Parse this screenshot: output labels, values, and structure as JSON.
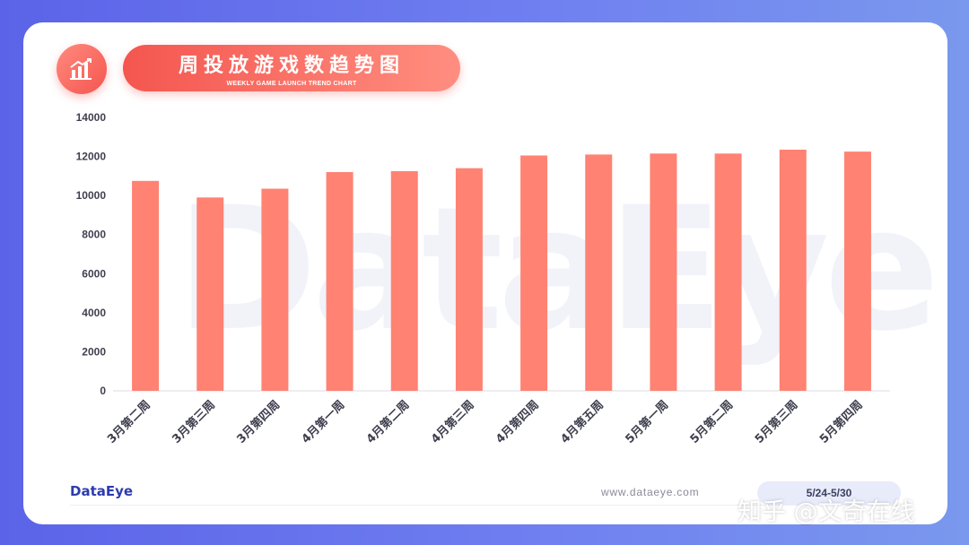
{
  "header": {
    "title": "周投放游戏数趋势图",
    "subtitle": "WEEKLY GAME LAUNCH TREND CHART"
  },
  "watermark": "DataEye",
  "footer": {
    "logo": "DataEye",
    "url": "www.dataeye.com",
    "date_range": "5/24-5/30"
  },
  "overlay_credit": "知乎 @文奇在线",
  "icons": {
    "header_icon": "bar-chart-trend-icon"
  },
  "colors": {
    "bar": "#ff8273",
    "accent": "#f4564f",
    "background": "#5b63e8"
  },
  "chart_data": {
    "type": "bar",
    "title": "周投放游戏数趋势图",
    "xlabel": "",
    "ylabel": "",
    "categories": [
      "3月第二周",
      "3月第三周",
      "3月第四周",
      "4月第一周",
      "4月第二周",
      "4月第三周",
      "4月第四周",
      "4月第五周",
      "5月第一周",
      "5月第二周",
      "5月第三周",
      "5月第四周"
    ],
    "values": [
      10750,
      9900,
      10350,
      11200,
      11250,
      11400,
      12050,
      12100,
      12150,
      12150,
      12350,
      12250
    ],
    "ylim": [
      0,
      14000
    ],
    "yticks": [
      0,
      2000,
      4000,
      6000,
      8000,
      10000,
      12000,
      14000
    ],
    "grid": false,
    "legend": "none"
  }
}
